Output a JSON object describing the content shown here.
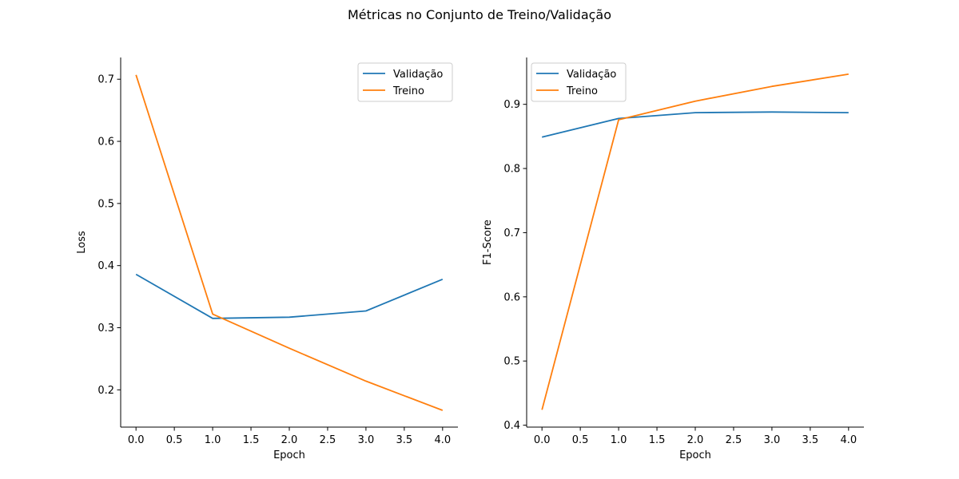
{
  "suptitle": "Métricas no Conjunto de Treino/Validação",
  "colors": {
    "validacao": "#1f77b4",
    "treino": "#ff7f0e"
  },
  "chart_data": [
    {
      "type": "line",
      "xlabel": "Epoch",
      "ylabel": "Loss",
      "x": [
        0,
        1,
        2,
        3,
        4
      ],
      "xlim": [
        -0.2,
        4.2
      ],
      "ylim": [
        0.14,
        0.735
      ],
      "xticks": [
        0.0,
        0.5,
        1.0,
        1.5,
        2.0,
        2.5,
        3.0,
        3.5,
        4.0
      ],
      "xtick_labels": [
        "0.0",
        "0.5",
        "1.0",
        "1.5",
        "2.0",
        "2.5",
        "3.0",
        "3.5",
        "4.0"
      ],
      "yticks": [
        0.2,
        0.3,
        0.4,
        0.5,
        0.6,
        0.7
      ],
      "ytick_labels": [
        "0.2",
        "0.3",
        "0.4",
        "0.5",
        "0.6",
        "0.7"
      ],
      "legend_position": "top-right",
      "grid": false,
      "series": [
        {
          "name": "Validação",
          "values": [
            0.386,
            0.315,
            0.317,
            0.327,
            0.378
          ]
        },
        {
          "name": "Treino",
          "values": [
            0.707,
            0.322,
            0.267,
            0.214,
            0.167
          ]
        }
      ]
    },
    {
      "type": "line",
      "xlabel": "Epoch",
      "ylabel": "F1-Score",
      "x": [
        0,
        1,
        2,
        3,
        4
      ],
      "xlim": [
        -0.2,
        4.2
      ],
      "ylim": [
        0.397,
        0.973
      ],
      "xticks": [
        0.0,
        0.5,
        1.0,
        1.5,
        2.0,
        2.5,
        3.0,
        3.5,
        4.0
      ],
      "xtick_labels": [
        "0.0",
        "0.5",
        "1.0",
        "1.5",
        "2.0",
        "2.5",
        "3.0",
        "3.5",
        "4.0"
      ],
      "yticks": [
        0.4,
        0.5,
        0.6,
        0.7,
        0.8,
        0.9
      ],
      "ytick_labels": [
        "0.4",
        "0.5",
        "0.6",
        "0.7",
        "0.8",
        "0.9"
      ],
      "legend_position": "top-left",
      "grid": false,
      "series": [
        {
          "name": "Validação",
          "values": [
            0.849,
            0.878,
            0.887,
            0.888,
            0.887
          ]
        },
        {
          "name": "Treino",
          "values": [
            0.424,
            0.876,
            0.905,
            0.928,
            0.947
          ]
        }
      ]
    }
  ]
}
